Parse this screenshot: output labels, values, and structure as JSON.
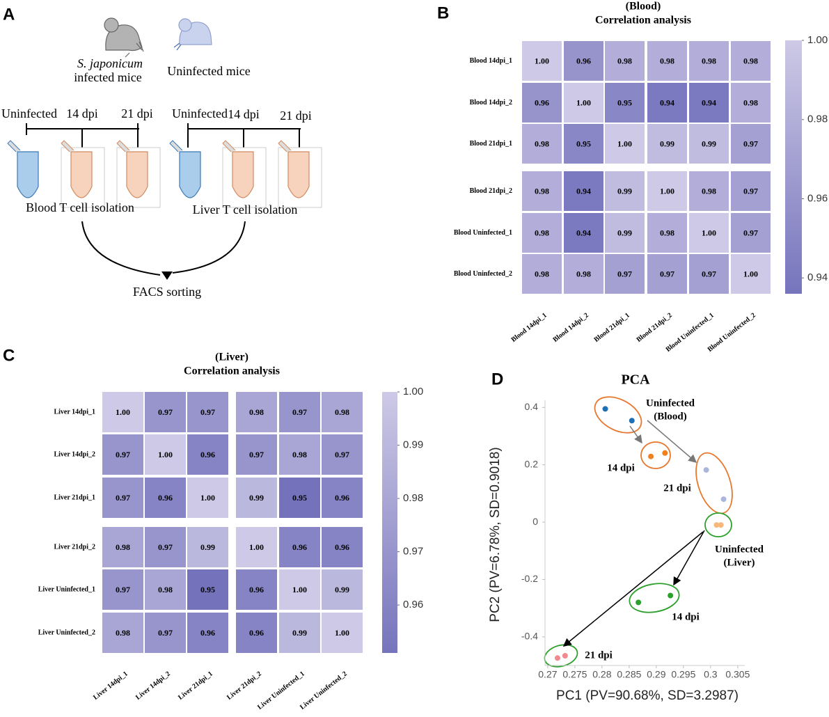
{
  "panel_labels": [
    "A",
    "B",
    "C",
    "D"
  ],
  "diagram": {
    "mice": [
      {
        "label": [
          "S. japonicum",
          "infected mice"
        ]
      },
      {
        "label": [
          "Uninfected mice"
        ]
      }
    ],
    "timelines": [
      {
        "points": [
          "Uninfected",
          "14 dpi",
          "21 dpi"
        ],
        "caption": "Blood T cell isolation"
      },
      {
        "points": [
          "Uninfected",
          "14 dpi",
          "21 dpi"
        ],
        "caption": "Liver T cell isolation"
      }
    ],
    "output": "FACS sorting"
  },
  "chart_data": [
    {
      "type": "heatmap",
      "title": "(Blood)",
      "subtitle": "Correlation analysis",
      "rows": [
        "Blood 14dpi_1",
        "Blood 14dpi_2",
        "Blood 21dpi_1",
        "Blood 21dpi_2",
        "Blood Uninfected_1",
        "Blood Uninfected_2"
      ],
      "columns": [
        "Blood 14dpi_1",
        "Blood 14dpi_2",
        "Blood 21dpi_1",
        "Blood 21dpi_2",
        "Blood Uninfected_1",
        "Blood Uninfected_2"
      ],
      "values": [
        [
          1,
          0.96,
          0.98,
          0.98,
          0.98,
          0.98
        ],
        [
          0.96,
          1,
          0.95,
          0.94,
          0.94,
          0.98
        ],
        [
          0.98,
          0.95,
          1,
          0.99,
          0.99,
          0.97
        ],
        [
          0.98,
          0.94,
          0.99,
          1,
          0.98,
          0.97
        ],
        [
          0.98,
          0.94,
          0.99,
          0.98,
          1,
          0.97
        ],
        [
          0.98,
          0.98,
          0.97,
          0.97,
          0.97,
          1
        ]
      ],
      "value_labels": [
        [
          "1.00",
          "0.96",
          "0.98",
          "0.98",
          "0.98",
          "0.98"
        ],
        [
          "0.96",
          "1.00",
          "0.95",
          "0.94",
          "0.94",
          "0.98"
        ],
        [
          "0.98",
          "0.95",
          "1.00",
          "0.99",
          "0.99",
          "0.97"
        ],
        [
          "0.98",
          "0.94",
          "0.99",
          "1.00",
          "0.98",
          "0.97"
        ],
        [
          "0.98",
          "0.94",
          "0.99",
          "0.98",
          "1.00",
          "0.97"
        ],
        [
          "0.98",
          "0.98",
          "0.97",
          "0.97",
          "0.97",
          "1.00"
        ]
      ],
      "zlim": [
        0.936,
        1
      ],
      "zticks": [
        0.94,
        0.96,
        0.98,
        {
          "value": 1,
          "label": "1.00"
        }
      ],
      "colormap": [
        "#7674bc",
        "#cdc9e6"
      ]
    },
    {
      "type": "heatmap",
      "title": "(Liver)",
      "subtitle": "Correlation analysis",
      "rows": [
        "Liver 14dpi_1",
        "Liver 14dpi_2",
        "Liver 21dpi_1",
        "Liver 21dpi_2",
        "Liver Uninfected_1",
        "Liver Uninfected_2"
      ],
      "columns": [
        "Liver 14dpi_1",
        "Liver 14dpi_2",
        "Liver 21dpi_1",
        "Liver 21dpi_2",
        "Liver Uninfected_1",
        "Liver Uninfected_2"
      ],
      "values": [
        [
          1,
          0.97,
          0.97,
          0.98,
          0.97,
          0.98
        ],
        [
          0.97,
          1,
          0.96,
          0.97,
          0.98,
          0.97
        ],
        [
          0.97,
          0.96,
          1,
          0.99,
          0.95,
          0.96
        ],
        [
          0.98,
          0.97,
          0.99,
          1,
          0.96,
          0.96
        ],
        [
          0.97,
          0.98,
          0.95,
          0.96,
          1,
          0.99
        ],
        [
          0.98,
          0.97,
          0.96,
          0.96,
          0.99,
          1
        ]
      ],
      "value_labels": [
        [
          "1.00",
          "0.97",
          "0.97",
          "0.98",
          "0.97",
          "0.98"
        ],
        [
          "0.97",
          "1.00",
          "0.96",
          "0.97",
          "0.98",
          "0.97"
        ],
        [
          "0.97",
          "0.96",
          "1.00",
          "0.99",
          "0.95",
          "0.96"
        ],
        [
          "0.98",
          "0.97",
          "0.99",
          "1.00",
          "0.96",
          "0.96"
        ],
        [
          "0.97",
          "0.98",
          "0.95",
          "0.96",
          "1.00",
          "0.99"
        ],
        [
          "0.98",
          "0.97",
          "0.96",
          "0.96",
          "0.99",
          "1.00"
        ]
      ],
      "zlim": [
        0.951,
        1
      ],
      "zticks": [
        0.96,
        0.97,
        0.98,
        0.99,
        {
          "value": 1,
          "label": "1.00"
        }
      ],
      "colormap": [
        "#7674bc",
        "#cdc9e6"
      ]
    },
    {
      "type": "scatter",
      "title": "PCA",
      "xlabel": "PC1 (PV=90.68%, SD=3.2987)",
      "ylabel": "PC2 (PV=6.78%, SD=0.9018)",
      "xlim": [
        0.2695,
        0.3063
      ],
      "ylim": [
        -0.5,
        0.425
      ],
      "xticks": [
        0.27,
        0.275,
        0.28,
        0.285,
        0.29,
        0.295,
        0.3,
        0.305
      ],
      "yticks": [
        -0.4,
        -0.2,
        0,
        0.2,
        0.4
      ],
      "series": [
        {
          "label": [
            "Uninfected",
            "(Blood)"
          ],
          "color": "#1f6fb4",
          "x": [
            0.2806,
            0.2855
          ],
          "y": [
            0.395,
            0.354
          ]
        },
        {
          "label": [
            "14 dpi"
          ],
          "color": "#f07f1e",
          "x": [
            0.289,
            0.2916
          ],
          "y": [
            0.229,
            0.241
          ]
        },
        {
          "label": [
            "21 dpi"
          ],
          "color": "#aab6dc",
          "x": [
            0.2992,
            0.3024
          ],
          "y": [
            0.182,
            0.08
          ]
        },
        {
          "label": [
            "Uninfected",
            "(Liver)"
          ],
          "color": "#f8b87c",
          "x": [
            0.3011,
            0.3019
          ],
          "y": [
            -0.01,
            -0.01
          ]
        },
        {
          "label": [
            "14 dpi"
          ],
          "color": "#2ca02c",
          "x": [
            0.2867,
            0.2926
          ],
          "y": [
            -0.28,
            -0.256
          ]
        },
        {
          "label": [
            "21 dpi"
          ],
          "color": "#f08a8e",
          "x": [
            0.2718,
            0.2732
          ],
          "y": [
            -0.474,
            -0.466
          ]
        }
      ]
    }
  ]
}
